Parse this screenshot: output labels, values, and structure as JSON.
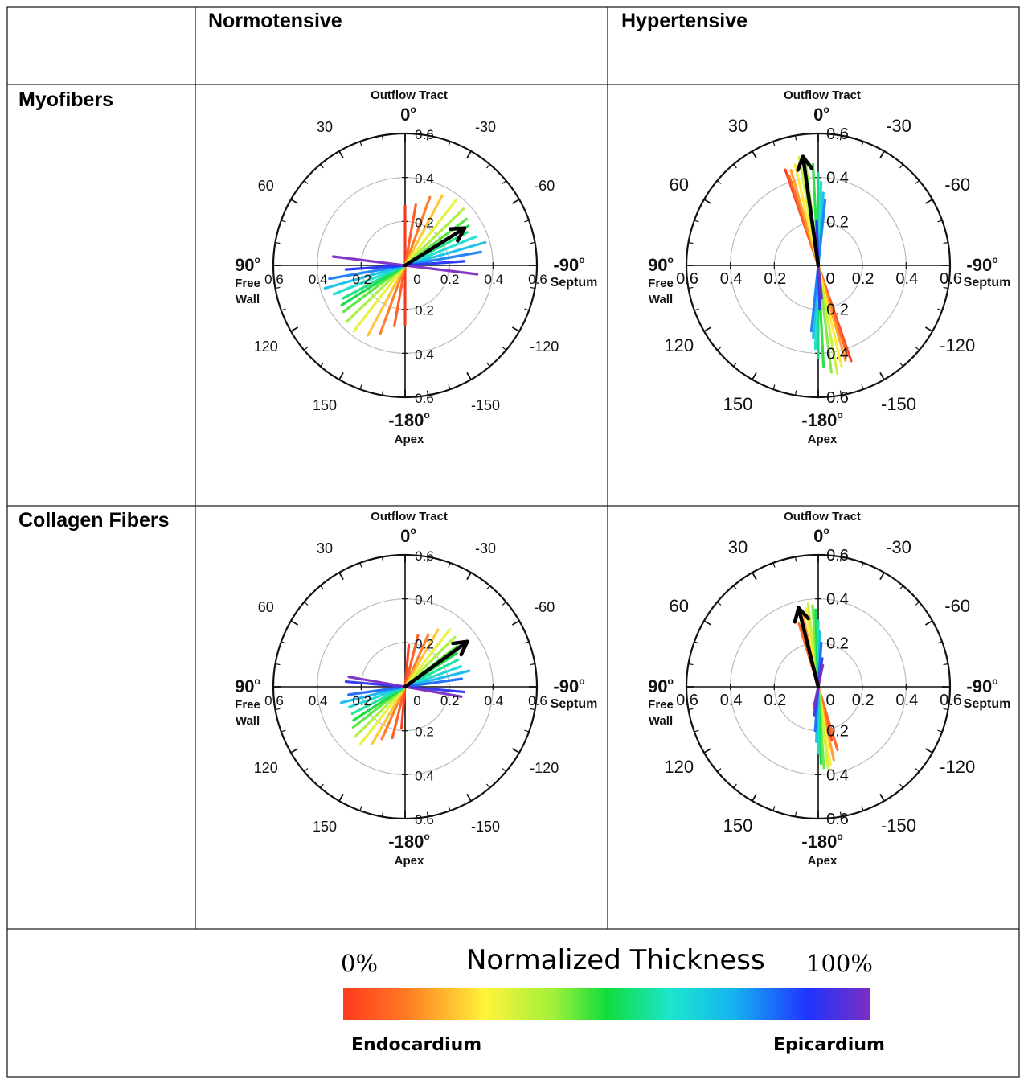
{
  "table": {
    "columns": [
      "Normotensive",
      "Hypertensive"
    ],
    "rows": [
      "Myofibers",
      "Collagen Fibers"
    ]
  },
  "polar_labels": {
    "top": "Outflow Tract",
    "top_angle": "0",
    "bottom": "Apex",
    "bottom_angle": "-180",
    "left_angle": "90",
    "left_line1": "Free",
    "left_line2": "Wall",
    "right_angle": "-90",
    "right": "Septum",
    "deg": "o",
    "angle_ticks": [
      "30",
      "-30",
      "60",
      "-60",
      "120",
      "-120",
      "150",
      "-150"
    ],
    "radial_ticks": [
      "0.2",
      "0.4",
      "0.6"
    ],
    "origin": "0"
  },
  "colorbar": {
    "title": "Normalized Thickness",
    "min_label": "0%",
    "max_label": "100%",
    "left": "Endocardium",
    "right": "Epicardium",
    "colors": [
      "#ff3a1c",
      "#ff7b22",
      "#fff43a",
      "#9ef03a",
      "#10dc3c",
      "#1ce6cc",
      "#16b4f0",
      "#1f34ff",
      "#7a2ec2"
    ]
  },
  "chart_data": [
    {
      "type": "polar",
      "row": "Myofibers",
      "column": "Normotensive",
      "rlim": [
        0,
        0.6
      ],
      "mean_arrow": {
        "angle": -58,
        "r": 0.32
      },
      "fibers": [
        {
          "angle": 0,
          "r": 0.27,
          "depth": 0.0
        },
        {
          "angle": -10,
          "r": 0.28,
          "depth": 0.06
        },
        {
          "angle": -20,
          "r": 0.33,
          "depth": 0.12
        },
        {
          "angle": -28,
          "r": 0.36,
          "depth": 0.2
        },
        {
          "angle": -38,
          "r": 0.38,
          "depth": 0.28
        },
        {
          "angle": -46,
          "r": 0.37,
          "depth": 0.36
        },
        {
          "angle": -53,
          "r": 0.35,
          "depth": 0.44
        },
        {
          "angle": -58,
          "r": 0.34,
          "depth": 0.5
        },
        {
          "angle": -62,
          "r": 0.32,
          "depth": 0.56
        },
        {
          "angle": -68,
          "r": 0.35,
          "depth": 0.64
        },
        {
          "angle": -74,
          "r": 0.38,
          "depth": 0.72
        },
        {
          "angle": -80,
          "r": 0.35,
          "depth": 0.8
        },
        {
          "angle": -86,
          "r": 0.27,
          "depth": 0.88
        },
        {
          "angle": -97,
          "r": 0.33,
          "depth": 1.0
        }
      ]
    },
    {
      "type": "polar",
      "row": "Myofibers",
      "column": "Hypertensive",
      "rlim": [
        0,
        0.6
      ],
      "mean_arrow": {
        "angle": 8,
        "r": 0.5
      },
      "fibers": [
        {
          "angle": 19,
          "r": 0.46,
          "depth": 0.0
        },
        {
          "angle": 18,
          "r": 0.43,
          "depth": 0.08
        },
        {
          "angle": 16,
          "r": 0.45,
          "depth": 0.16
        },
        {
          "angle": 13,
          "r": 0.47,
          "depth": 0.24
        },
        {
          "angle": 10,
          "r": 0.5,
          "depth": 0.32
        },
        {
          "angle": 7,
          "r": 0.49,
          "depth": 0.4
        },
        {
          "angle": 3,
          "r": 0.46,
          "depth": 0.48
        },
        {
          "angle": 0,
          "r": 0.42,
          "depth": 0.56
        },
        {
          "angle": -2,
          "r": 0.38,
          "depth": 0.64
        },
        {
          "angle": -4,
          "r": 0.33,
          "depth": 0.72
        },
        {
          "angle": -6,
          "r": 0.3,
          "depth": 0.8
        },
        {
          "angle": 2,
          "r": 0.2,
          "depth": 0.9
        },
        {
          "angle": 6,
          "r": 0.15,
          "depth": 1.0
        }
      ]
    },
    {
      "type": "polar",
      "row": "Collagen Fibers",
      "column": "Normotensive",
      "rlim": [
        0,
        0.6
      ],
      "mean_arrow": {
        "angle": -54,
        "r": 0.35
      },
      "fibers": [
        {
          "angle": -5,
          "r": 0.19,
          "depth": 0.0
        },
        {
          "angle": -14,
          "r": 0.24,
          "depth": 0.06
        },
        {
          "angle": -24,
          "r": 0.26,
          "depth": 0.12
        },
        {
          "angle": -30,
          "r": 0.3,
          "depth": 0.2
        },
        {
          "angle": -38,
          "r": 0.33,
          "depth": 0.28
        },
        {
          "angle": -45,
          "r": 0.32,
          "depth": 0.36
        },
        {
          "angle": -52,
          "r": 0.3,
          "depth": 0.44
        },
        {
          "angle": -57,
          "r": 0.28,
          "depth": 0.5
        },
        {
          "angle": -63,
          "r": 0.27,
          "depth": 0.58
        },
        {
          "angle": -70,
          "r": 0.27,
          "depth": 0.66
        },
        {
          "angle": -76,
          "r": 0.3,
          "depth": 0.74
        },
        {
          "angle": -82,
          "r": 0.26,
          "depth": 0.82
        },
        {
          "angle": -95,
          "r": 0.27,
          "depth": 0.9
        },
        {
          "angle": -100,
          "r": 0.26,
          "depth": 1.0
        }
      ]
    },
    {
      "type": "polar",
      "row": "Collagen Fibers",
      "column": "Hypertensive",
      "rlim": [
        0,
        0.6
      ],
      "mean_arrow": {
        "angle": 14,
        "r": 0.37
      },
      "fibers": [
        {
          "angle": 14,
          "r": 0.25,
          "depth": 0.0
        },
        {
          "angle": 17,
          "r": 0.3,
          "depth": 0.08
        },
        {
          "angle": 12,
          "r": 0.34,
          "depth": 0.16
        },
        {
          "angle": 9,
          "r": 0.36,
          "depth": 0.24
        },
        {
          "angle": 7,
          "r": 0.38,
          "depth": 0.32
        },
        {
          "angle": 4,
          "r": 0.37,
          "depth": 0.42
        },
        {
          "angle": 2,
          "r": 0.35,
          "depth": 0.52
        },
        {
          "angle": 0,
          "r": 0.3,
          "depth": 0.62
        },
        {
          "angle": -2,
          "r": 0.25,
          "depth": 0.72
        },
        {
          "angle": -4,
          "r": 0.2,
          "depth": 0.82
        },
        {
          "angle": -8,
          "r": 0.13,
          "depth": 0.92
        },
        {
          "angle": -12,
          "r": 0.1,
          "depth": 1.0
        }
      ]
    }
  ]
}
